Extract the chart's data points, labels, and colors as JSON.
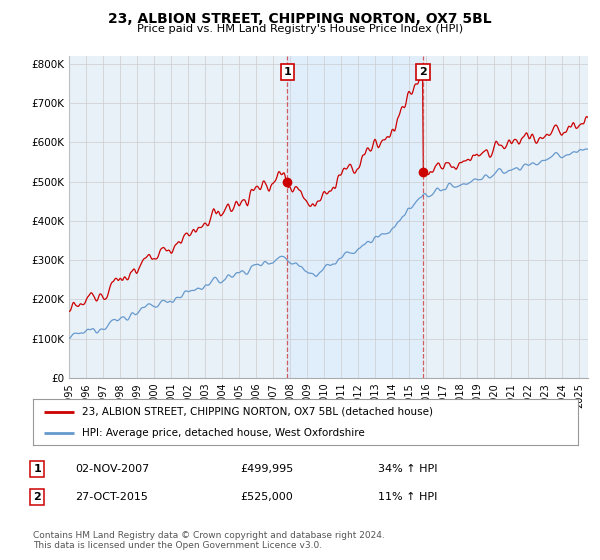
{
  "title": "23, ALBION STREET, CHIPPING NORTON, OX7 5BL",
  "subtitle": "Price paid vs. HM Land Registry's House Price Index (HPI)",
  "ylabel_ticks": [
    "£0",
    "£100K",
    "£200K",
    "£300K",
    "£400K",
    "£500K",
    "£600K",
    "£700K",
    "£800K"
  ],
  "ytick_values": [
    0,
    100000,
    200000,
    300000,
    400000,
    500000,
    600000,
    700000,
    800000
  ],
  "ylim": [
    0,
    820000
  ],
  "sale1_date": "02-NOV-2007",
  "sale1_price": 499995,
  "sale1_hpi": "34% ↑ HPI",
  "sale1_x": 2007.84,
  "sale2_date": "27-OCT-2015",
  "sale2_price": 525000,
  "sale2_hpi": "11% ↑ HPI",
  "sale2_x": 2015.82,
  "legend_line1": "23, ALBION STREET, CHIPPING NORTON, OX7 5BL (detached house)",
  "legend_line2": "HPI: Average price, detached house, West Oxfordshire",
  "footer": "Contains HM Land Registry data © Crown copyright and database right 2024.\nThis data is licensed under the Open Government Licence v3.0.",
  "red_color": "#cc0000",
  "blue_color": "#6699cc",
  "vline_color": "#cc4444",
  "shade_color": "#ddeeff",
  "grid_color": "#cccccc",
  "bg_color": "#e8f0f8",
  "plot_bg": "#ffffff",
  "xstart": 1995,
  "xend": 2025.5
}
